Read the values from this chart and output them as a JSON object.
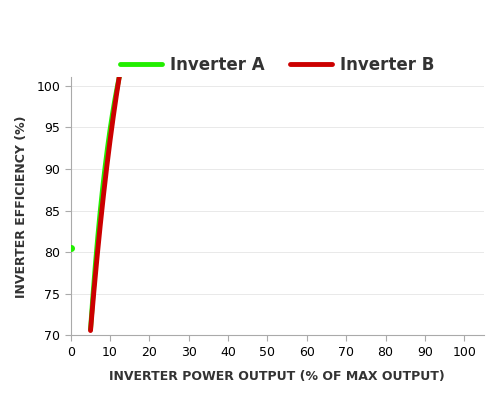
{
  "title": "",
  "xlabel": "INVERTER POWER OUTPUT (% OF MAX OUTPUT)",
  "ylabel": "INVERTER EFFICIENCY (%)",
  "xlim": [
    0,
    105
  ],
  "ylim": [
    70,
    101
  ],
  "xticks": [
    0,
    10,
    20,
    30,
    40,
    50,
    60,
    70,
    80,
    90,
    100
  ],
  "yticks": [
    70,
    75,
    80,
    85,
    90,
    95,
    100
  ],
  "inverter_a_color": "#22ee00",
  "inverter_b_color": "#cc0000",
  "inverter_a_label": "Inverter A",
  "inverter_b_label": "Inverter B",
  "line_width": 3.5,
  "background_color": "#ffffff",
  "legend_fontsize": 12,
  "axis_label_fontsize": 9,
  "tick_fontsize": 9,
  "dot_a_x": 0,
  "dot_a_y": 80.5,
  "dot_size": 4
}
